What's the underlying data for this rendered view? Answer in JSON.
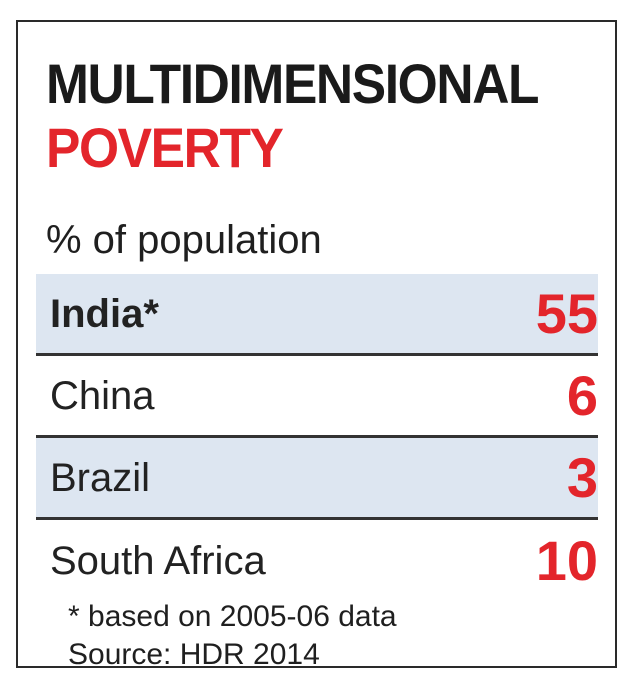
{
  "chart_data": {
    "type": "table",
    "title": "MULTIDIMENSIONAL",
    "title_highlight": "POVERTY",
    "subtitle": "% of population",
    "rows": [
      {
        "label": "India*",
        "value": "55",
        "value_num": 55,
        "shaded": true,
        "bold": true
      },
      {
        "label": "China",
        "value": "6",
        "value_num": 6,
        "shaded": false,
        "bold": false
      },
      {
        "label": "Brazil",
        "value": "3",
        "value_num": 3,
        "shaded": true,
        "bold": false
      },
      {
        "label": "South Africa",
        "value": "10",
        "value_num": 10,
        "shaded": false,
        "bold": false
      }
    ],
    "footnote": "* based on 2005-06 data",
    "source": "Source: HDR 2014"
  },
  "colors": {
    "accent": "#e3252b",
    "text": "#1f1f1f",
    "shade": "#dde6f1",
    "rule": "#333333"
  }
}
